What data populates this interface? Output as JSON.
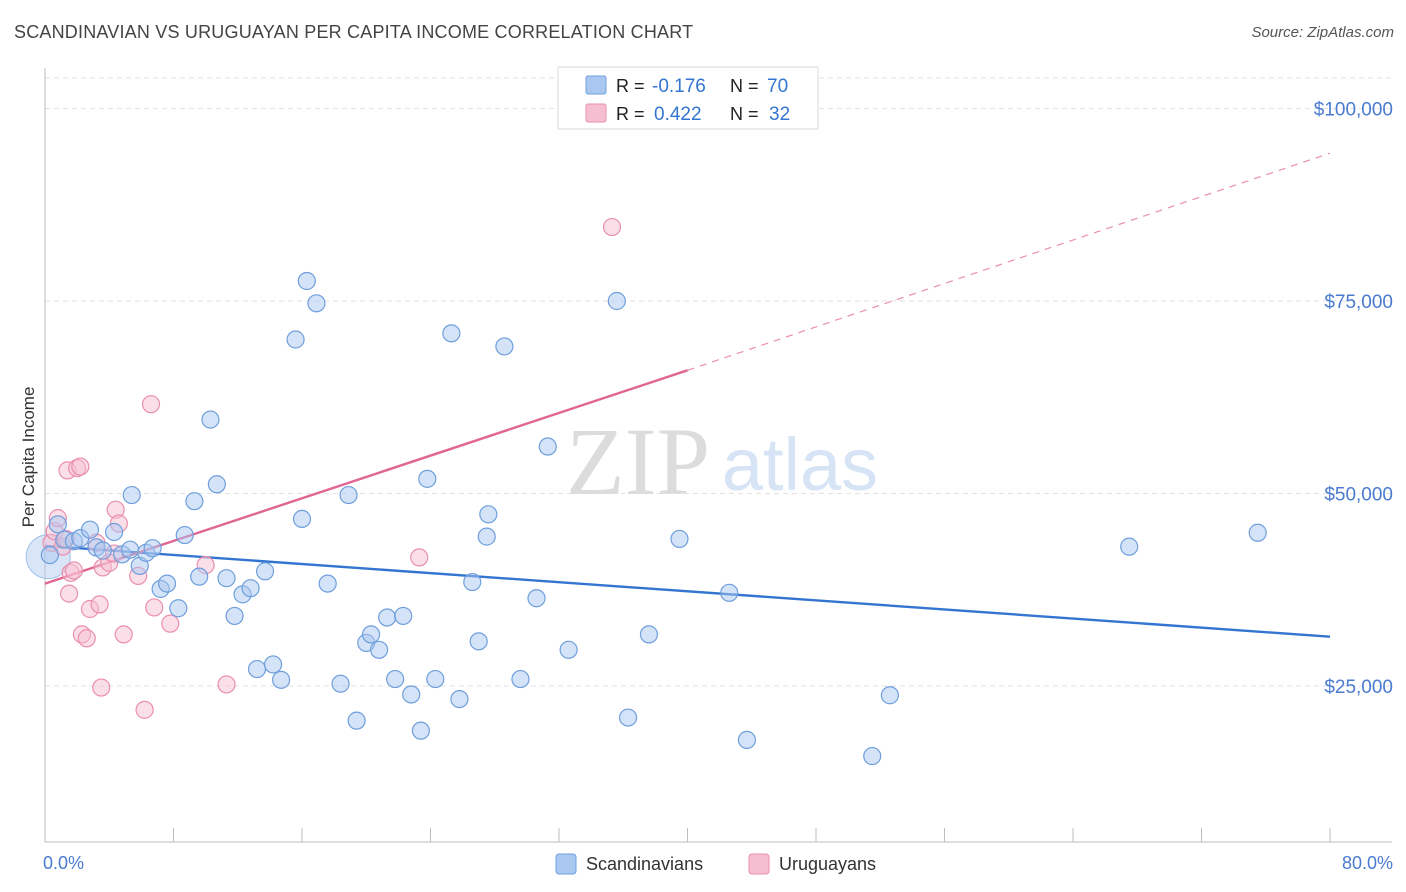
{
  "title": "SCANDINAVIAN VS URUGUAYAN PER CAPITA INCOME CORRELATION CHART",
  "source": "Source: ZipAtlas.com",
  "watermark": {
    "zip": "ZIP",
    "atlas": "atlas"
  },
  "colors": {
    "blue_fill": "#aac8ef",
    "blue_stroke": "#6e9fdc",
    "blue_line": "#3375d0",
    "pink_fill": "#f6bfd1",
    "pink_stroke": "#ea8fae",
    "pink_line": "#e06592",
    "axis_text": "#4a7bd0"
  },
  "chart_data": {
    "type": "scatter",
    "ylabel": "Per Capita Income",
    "xlim": [
      0,
      80
    ],
    "ylim": [
      5000,
      105000
    ],
    "x_tick_labels": [
      "0.0%",
      "80.0%"
    ],
    "y_ticks": [
      {
        "value": 25000,
        "label": "$25,000"
      },
      {
        "value": 50000,
        "label": "$50,000"
      },
      {
        "value": 75000,
        "label": "$75,000"
      },
      {
        "value": 100000,
        "label": "$100,000"
      }
    ],
    "grid": "horizontal dashed",
    "legend_position": "bottom",
    "stats": [
      {
        "r_label": "R =",
        "r_value": "-0.176",
        "n_label": "N =",
        "n_value": "70"
      },
      {
        "r_label": "R =",
        "r_value": "0.422",
        "n_label": "N =",
        "n_value": "32"
      }
    ],
    "series": [
      {
        "name": "Scandinavians",
        "trend": {
          "x0": 0,
          "y0": 43200,
          "x1": 80,
          "y1": 31400
        },
        "points": [
          [
            0.3,
            42000
          ],
          [
            0.8,
            46000
          ],
          [
            1.2,
            44000
          ],
          [
            1.8,
            43800
          ],
          [
            2.2,
            44200
          ],
          [
            2.8,
            45300
          ],
          [
            3.2,
            43000
          ],
          [
            3.6,
            42600
          ],
          [
            4.3,
            45000
          ],
          [
            4.8,
            42100
          ],
          [
            5.3,
            42700
          ],
          [
            5.4,
            49800
          ],
          [
            5.9,
            40600
          ],
          [
            6.3,
            42300
          ],
          [
            6.7,
            42900
          ],
          [
            7.2,
            37600
          ],
          [
            7.6,
            38300
          ],
          [
            8.3,
            35100
          ],
          [
            8.7,
            44600
          ],
          [
            9.3,
            49000
          ],
          [
            9.6,
            39200
          ],
          [
            10.3,
            59600
          ],
          [
            10.7,
            51200
          ],
          [
            11.3,
            39000
          ],
          [
            11.8,
            34100
          ],
          [
            12.3,
            36900
          ],
          [
            12.8,
            37700
          ],
          [
            13.2,
            27200
          ],
          [
            13.7,
            39900
          ],
          [
            14.2,
            27800
          ],
          [
            14.7,
            25800
          ],
          [
            15.6,
            70000
          ],
          [
            16.0,
            46700
          ],
          [
            16.3,
            77600
          ],
          [
            16.9,
            74700
          ],
          [
            17.6,
            38300
          ],
          [
            18.4,
            25300
          ],
          [
            18.9,
            49800
          ],
          [
            19.4,
            20500
          ],
          [
            20.0,
            30600
          ],
          [
            20.3,
            31700
          ],
          [
            20.8,
            29700
          ],
          [
            21.3,
            33900
          ],
          [
            21.8,
            25900
          ],
          [
            22.3,
            34100
          ],
          [
            22.8,
            23900
          ],
          [
            23.4,
            19200
          ],
          [
            23.8,
            51900
          ],
          [
            24.3,
            25900
          ],
          [
            25.3,
            70800
          ],
          [
            25.8,
            23300
          ],
          [
            26.6,
            38500
          ],
          [
            27.0,
            30800
          ],
          [
            27.6,
            47300
          ],
          [
            27.5,
            44400
          ],
          [
            28.6,
            69100
          ],
          [
            29.6,
            25900
          ],
          [
            30.6,
            36400
          ],
          [
            31.3,
            56100
          ],
          [
            32.6,
            29700
          ],
          [
            35.6,
            75000
          ],
          [
            36.3,
            20900
          ],
          [
            37.6,
            31700
          ],
          [
            39.5,
            44100
          ],
          [
            42.6,
            37100
          ],
          [
            43.7,
            18000
          ],
          [
            51.5,
            15900
          ],
          [
            52.6,
            23800
          ],
          [
            67.5,
            43100
          ],
          [
            75.5,
            44900
          ]
        ]
      },
      {
        "name": "Uruguayans",
        "trend": {
          "x0": 0,
          "y0": 38300,
          "x1": 40,
          "y1": 66000
        },
        "trend_extension": {
          "x0": 40,
          "y0": 66000,
          "x1": 80,
          "y1": 94200
        },
        "points": [
          [
            0.4,
            43600
          ],
          [
            0.6,
            45100
          ],
          [
            0.8,
            46800
          ],
          [
            1.1,
            43100
          ],
          [
            1.3,
            44100
          ],
          [
            1.4,
            53000
          ],
          [
            1.5,
            37000
          ],
          [
            1.6,
            39700
          ],
          [
            1.8,
            40000
          ],
          [
            2.0,
            53300
          ],
          [
            2.2,
            53500
          ],
          [
            2.3,
            31700
          ],
          [
            2.6,
            31200
          ],
          [
            2.8,
            35000
          ],
          [
            3.2,
            43600
          ],
          [
            3.4,
            35600
          ],
          [
            3.5,
            24800
          ],
          [
            3.6,
            40400
          ],
          [
            4.0,
            41000
          ],
          [
            4.3,
            42200
          ],
          [
            4.4,
            47900
          ],
          [
            4.6,
            46100
          ],
          [
            4.9,
            31700
          ],
          [
            5.8,
            39300
          ],
          [
            6.2,
            21900
          ],
          [
            6.6,
            61600
          ],
          [
            6.8,
            35200
          ],
          [
            7.8,
            33100
          ],
          [
            10.0,
            40700
          ],
          [
            11.3,
            25200
          ],
          [
            23.3,
            41700
          ],
          [
            35.3,
            84600
          ]
        ]
      }
    ]
  }
}
